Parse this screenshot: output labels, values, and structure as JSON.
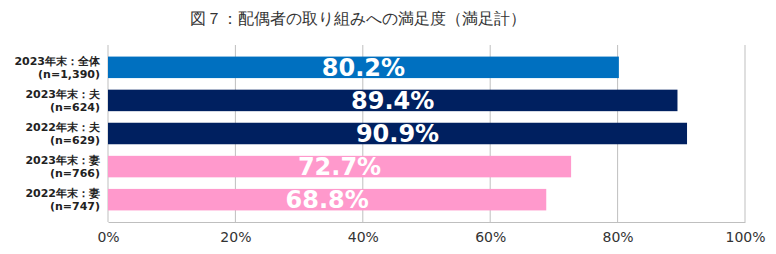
{
  "chart_data": {
    "type": "bar",
    "orientation": "horizontal",
    "title": "図７：配偶者の取り組みへの満足度（満足計）",
    "categories": [
      "2023年末：全体\n(n=1,390)",
      "2023年末：夫\n(n=624)",
      "2022年末：夫\n(n=629)",
      "2023年末：妻\n(n=766)",
      "2022年末：妻\n(n=747)"
    ],
    "values": [
      80.2,
      89.4,
      90.9,
      72.7,
      68.8
    ],
    "value_labels": [
      "80.2%",
      "89.4%",
      "90.9%",
      "72.7%",
      "68.8%"
    ],
    "colors": [
      "#0070c0",
      "#002060",
      "#002060",
      "#ff99cc",
      "#ff99cc"
    ],
    "data_labels": true,
    "xlim": [
      0,
      100
    ],
    "xticks": [
      {
        "value": 0,
        "label": "0%"
      },
      {
        "value": 20,
        "label": "20%"
      },
      {
        "value": 40,
        "label": "40%"
      },
      {
        "value": 60,
        "label": "60%"
      },
      {
        "value": 80,
        "label": "80%"
      },
      {
        "value": 100,
        "label": "100%"
      }
    ],
    "grid": true
  }
}
